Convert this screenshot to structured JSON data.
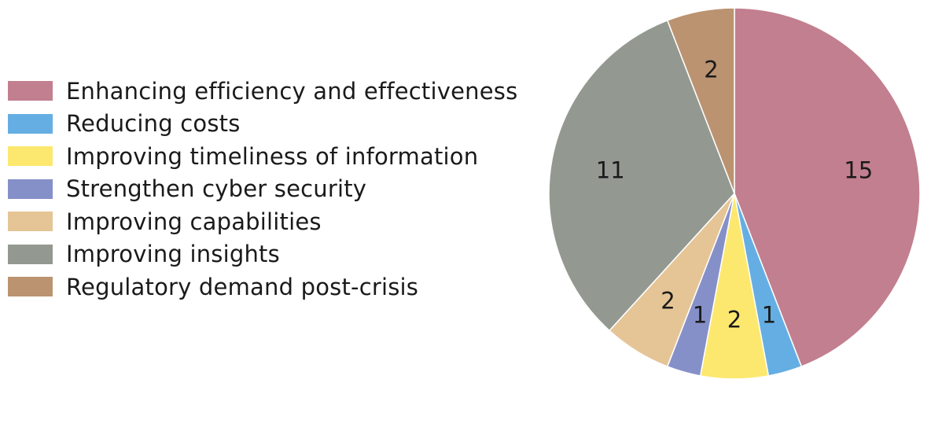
{
  "chart_data": {
    "type": "pie",
    "categories": [
      "Enhancing efficiency and effectiveness",
      "Reducing costs",
      "Improving timeliness of information",
      "Strengthen cyber security",
      "Improving capabilities",
      "Improving insights",
      "Regulatory demand post-crisis"
    ],
    "values": [
      15,
      1,
      2,
      1,
      2,
      11,
      2
    ],
    "colors": [
      "#c27f8f",
      "#65aee3",
      "#fde86f",
      "#8690c8",
      "#e5c596",
      "#939991",
      "#bb9371"
    ],
    "legend_position": "left",
    "start_angle_deg": 0,
    "direction": "clockwise",
    "slice_borders": "white"
  }
}
